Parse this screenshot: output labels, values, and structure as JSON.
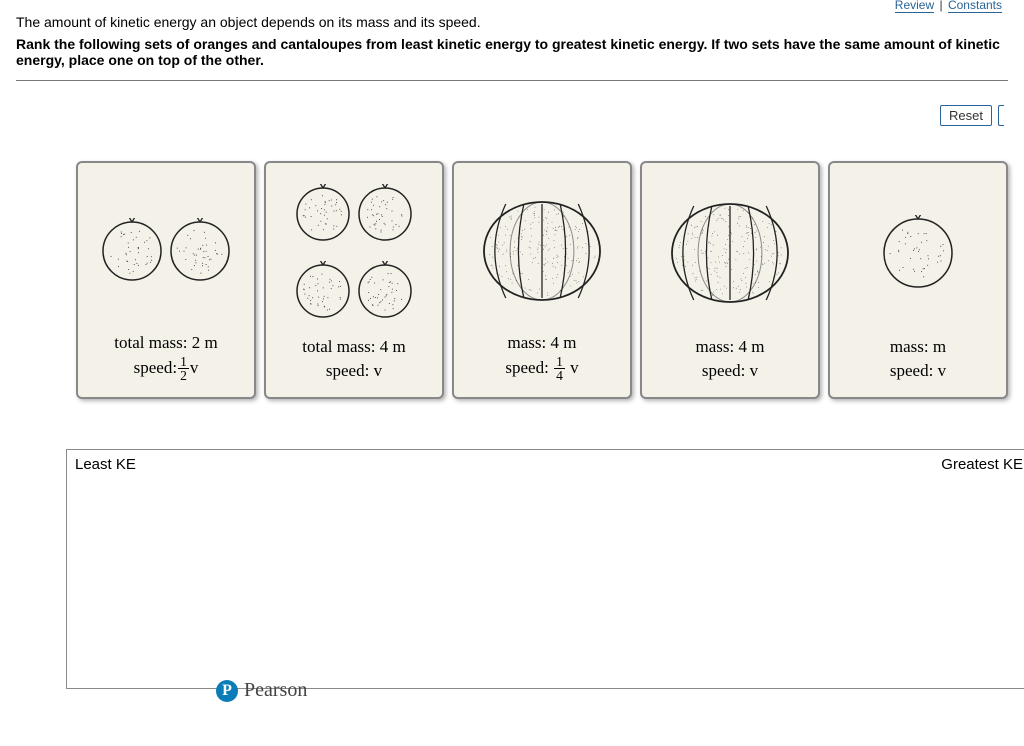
{
  "nav": {
    "review": "Review",
    "constants": "Constants"
  },
  "intro": {
    "line1": "The amount of kinetic energy an object depends on its mass and its speed.",
    "line2": "Rank the following sets of oranges and cantaloupes from least kinetic energy to greatest kinetic energy. If two sets have the same amount of kinetic energy, place one on top of the other."
  },
  "buttons": {
    "reset": "Reset"
  },
  "cards": [
    {
      "id": "card-a",
      "art": {
        "kind": "orange",
        "count": 2,
        "size": 62
      },
      "mass_label": "total mass: 2 m",
      "speed_prefix": "speed:",
      "speed_frac_num": "1",
      "speed_frac_den": "2",
      "speed_suffix": "v"
    },
    {
      "id": "card-b",
      "art": {
        "kind": "orange",
        "count": 4,
        "size": 56
      },
      "mass_label": "total mass: 4 m",
      "speed_prefix": "speed: v",
      "speed_frac_num": null,
      "speed_frac_den": null,
      "speed_suffix": ""
    },
    {
      "id": "card-c",
      "art": {
        "kind": "cantaloupe",
        "count": 1,
        "size": 120
      },
      "mass_label": "mass: 4 m",
      "speed_prefix": "speed: ",
      "speed_frac_num": "1",
      "speed_frac_den": "4",
      "speed_suffix": " v"
    },
    {
      "id": "card-d",
      "art": {
        "kind": "cantaloupe",
        "count": 1,
        "size": 120
      },
      "mass_label": "mass: 4 m",
      "speed_prefix": "speed: v",
      "speed_frac_num": null,
      "speed_frac_den": null,
      "speed_suffix": ""
    },
    {
      "id": "card-e",
      "art": {
        "kind": "orange",
        "count": 1,
        "size": 72
      },
      "mass_label": "mass: m",
      "speed_prefix": "speed: v",
      "speed_frac_num": null,
      "speed_frac_den": null,
      "speed_suffix": ""
    }
  ],
  "dropzone": {
    "left": "Least KE",
    "right": "Greatest KE"
  },
  "footer": {
    "brand": "Pearson",
    "icon_letter": "P"
  },
  "style": {
    "card_bg": "#f4f2e8",
    "card_border": "#888888",
    "panel_border_top": "#777777",
    "dropzone_border": "#8a8a8a",
    "button_border": "#2a6496",
    "pearson_blue": "#0a7db8",
    "text": "#000000",
    "ink": "#222222"
  }
}
